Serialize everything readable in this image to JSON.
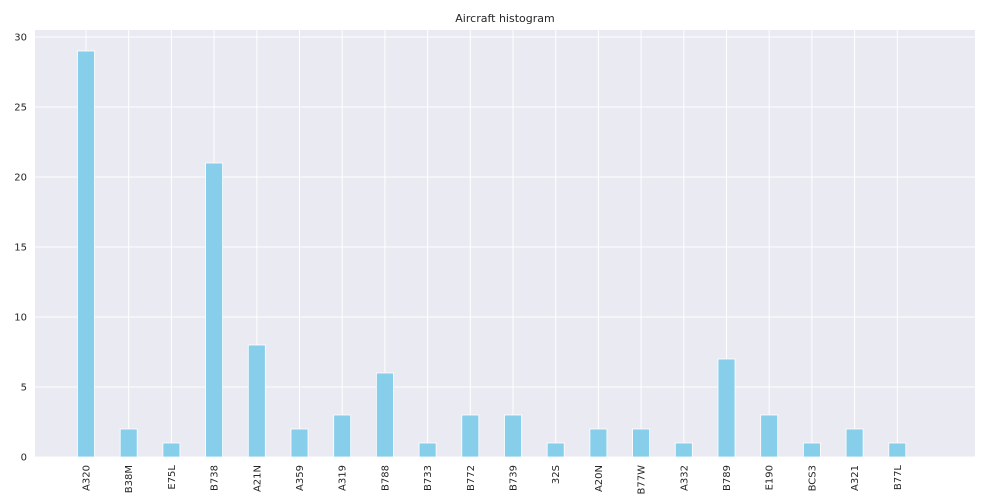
{
  "chart_data": {
    "type": "bar",
    "title": "Aircraft histogram",
    "xlabel": "",
    "ylabel": "",
    "categories": [
      "A320",
      "B38M",
      "E75L",
      "B738",
      "A21N",
      "A359",
      "A319",
      "B788",
      "B733",
      "B772",
      "B739",
      "32S",
      "A20N",
      "B77W",
      "A332",
      "B789",
      "E190",
      "BCS3",
      "A321",
      "B77L"
    ],
    "values": [
      29,
      2,
      1,
      21,
      8,
      2,
      3,
      6,
      1,
      3,
      3,
      1,
      2,
      2,
      1,
      7,
      3,
      1,
      2,
      1
    ],
    "ylim": [
      0,
      30.5
    ],
    "yticks": [
      0,
      5,
      10,
      15,
      20,
      25,
      30
    ],
    "grid": true,
    "colors": {
      "bar": "#87ceeb",
      "plot_background": "#eaeaf2",
      "grid": "#ffffff"
    }
  }
}
